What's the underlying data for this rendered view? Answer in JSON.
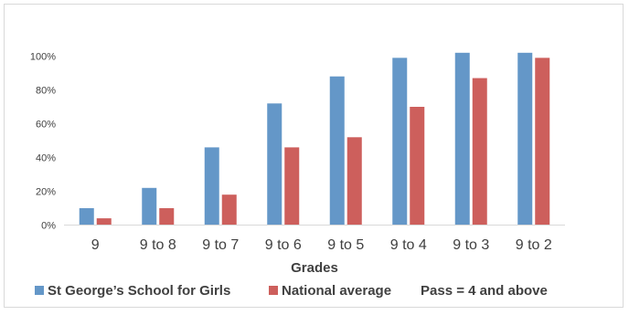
{
  "chart_data": {
    "type": "bar",
    "categories": [
      "9",
      "9 to 8",
      "9 to 7",
      "9 to 6",
      "9 to 5",
      "9 to 4",
      "9 to 3",
      "9 to 2"
    ],
    "series": [
      {
        "name": "St George’s School for Girls",
        "color": "#6497c8",
        "values": [
          10,
          22,
          46,
          72,
          88,
          99,
          102,
          102
        ]
      },
      {
        "name": "National average",
        "color": "#cd5f5c",
        "values": [
          4,
          10,
          18,
          46,
          52,
          70,
          87,
          99
        ]
      }
    ],
    "y_ticks": [
      "0%",
      "20%",
      "40%",
      "60%",
      "80%",
      "100%"
    ],
    "ylim": [
      0,
      110
    ],
    "xlabel": "Grades",
    "ylabel": "",
    "legend_note": "Pass = 4 and above",
    "grid": false,
    "legend_position": "bottom-left"
  }
}
